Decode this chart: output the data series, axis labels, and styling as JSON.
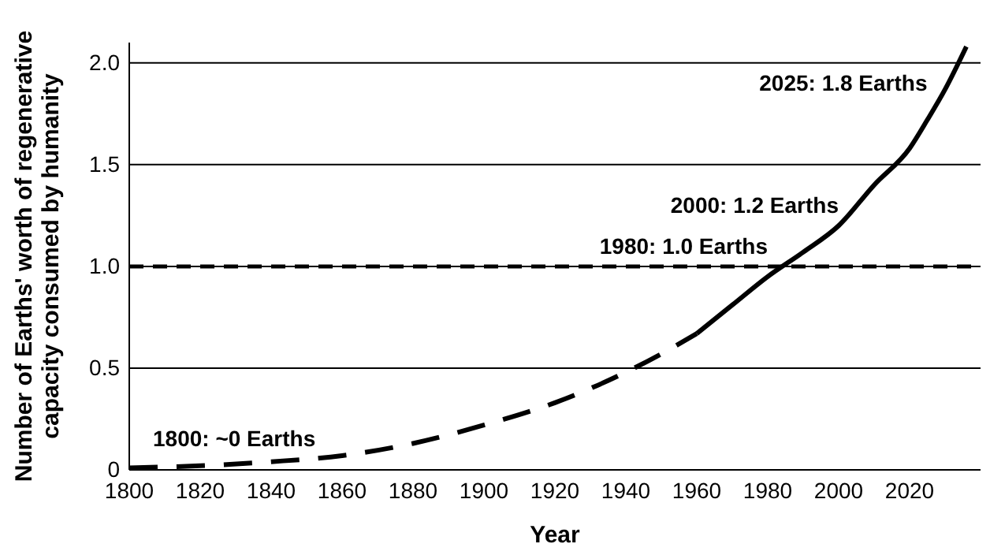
{
  "chart_data": {
    "type": "line",
    "xlabel": "Year",
    "ylabel": "Number of Earths' worth of regenerative\ncapacity consumed by humanity",
    "xlim": [
      1800,
      2040
    ],
    "xticks": [
      1800,
      1820,
      1840,
      1860,
      1880,
      1900,
      1920,
      1940,
      1960,
      1980,
      2000,
      2020
    ],
    "ylim": [
      0,
      2.1
    ],
    "yticks": [
      0,
      {
        "value": 0.5,
        "label": "0.5"
      },
      {
        "value": 1,
        "label": "1.0"
      },
      {
        "value": 1.5,
        "label": "1.5"
      },
      {
        "value": 2,
        "label": "2.0"
      }
    ],
    "grid": "y",
    "marker": "none",
    "series": [
      {
        "color": "#000000",
        "line_style": "dashed",
        "x": [
          1800,
          1820,
          1840,
          1860,
          1880,
          1900,
          1920,
          1940,
          1950,
          1960
        ],
        "values": [
          0.01,
          0.02,
          0.04,
          0.07,
          0.13,
          0.22,
          0.33,
          0.48,
          0.57,
          0.67
        ]
      },
      {
        "color": "#000000",
        "line_style": "solid",
        "x": [
          1960,
          1970,
          1980,
          1990,
          2000,
          2010,
          2020,
          2025,
          2030,
          2036
        ],
        "values": [
          0.67,
          0.81,
          0.95,
          1.07,
          1.2,
          1.4,
          1.58,
          1.72,
          1.87,
          2.08
        ]
      }
    ],
    "ref_lines": [
      {
        "axis": "y",
        "value": 1,
        "line_style": "dashed",
        "color": "#000000"
      }
    ],
    "annotations": [
      {
        "text": "1800: ~0 Earths",
        "x": 1800,
        "y": 0
      },
      {
        "text": "1980: 1.0 Earths",
        "x": 1980,
        "y": 1
      },
      {
        "text": "2000: 1.2 Earths",
        "x": 2000,
        "y": 1.2
      },
      {
        "text": "2025: 1.8 Earths",
        "x": 2025,
        "y": 1.8
      }
    ]
  }
}
